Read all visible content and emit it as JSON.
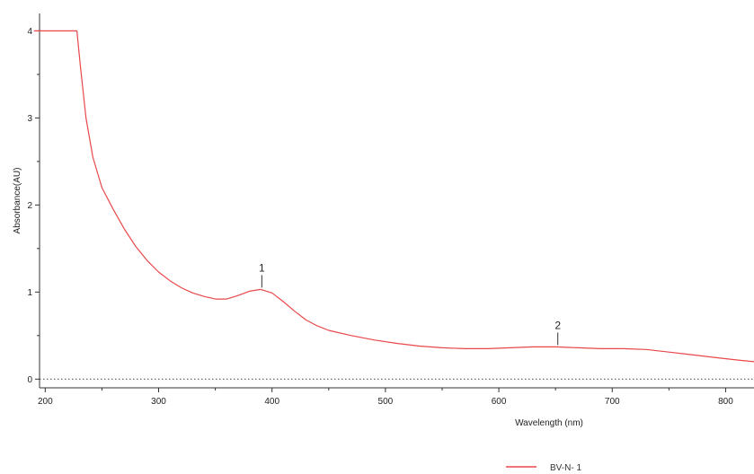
{
  "chart_data": {
    "type": "line",
    "title": "",
    "xlabel": "Wavelength (nm)",
    "ylabel": "Absorbance(AU)",
    "xlim": [
      195,
      825
    ],
    "ylim": [
      -0.1,
      4.2
    ],
    "x_ticks": [
      200,
      300,
      400,
      500,
      600,
      700,
      800
    ],
    "x_tick_labels": [
      "200",
      "300",
      "400",
      "500",
      "600",
      "700",
      "800"
    ],
    "y_ticks": [
      0,
      1,
      2,
      3,
      4
    ],
    "y_tick_labels": [
      "0",
      "1",
      "2",
      "3",
      "4"
    ],
    "baseline": 0,
    "grid": false,
    "legend_position": "bottom-right",
    "series": [
      {
        "name": "BV-N- 1",
        "color": "#e8484a",
        "points": [
          [
            190,
            4.0
          ],
          [
            228,
            4.0
          ],
          [
            231,
            3.6
          ],
          [
            236,
            3.0
          ],
          [
            242,
            2.55
          ],
          [
            250,
            2.2
          ],
          [
            260,
            1.95
          ],
          [
            270,
            1.72
          ],
          [
            280,
            1.52
          ],
          [
            290,
            1.36
          ],
          [
            300,
            1.23
          ],
          [
            310,
            1.13
          ],
          [
            320,
            1.05
          ],
          [
            330,
            0.99
          ],
          [
            340,
            0.95
          ],
          [
            350,
            0.92
          ],
          [
            360,
            0.92
          ],
          [
            370,
            0.96
          ],
          [
            380,
            1.01
          ],
          [
            390,
            1.03
          ],
          [
            400,
            0.99
          ],
          [
            410,
            0.89
          ],
          [
            420,
            0.78
          ],
          [
            430,
            0.68
          ],
          [
            440,
            0.61
          ],
          [
            450,
            0.56
          ],
          [
            470,
            0.5
          ],
          [
            490,
            0.45
          ],
          [
            510,
            0.41
          ],
          [
            530,
            0.38
          ],
          [
            550,
            0.36
          ],
          [
            570,
            0.35
          ],
          [
            590,
            0.35
          ],
          [
            610,
            0.36
          ],
          [
            630,
            0.37
          ],
          [
            650,
            0.37
          ],
          [
            670,
            0.36
          ],
          [
            690,
            0.35
          ],
          [
            710,
            0.35
          ],
          [
            730,
            0.34
          ],
          [
            750,
            0.31
          ],
          [
            770,
            0.28
          ],
          [
            790,
            0.25
          ],
          [
            810,
            0.22
          ],
          [
            825,
            0.2
          ]
        ]
      }
    ],
    "peaks": [
      {
        "label": "1",
        "x": 391,
        "y": 1.03
      },
      {
        "label": "2",
        "x": 652,
        "y": 0.37
      }
    ]
  }
}
